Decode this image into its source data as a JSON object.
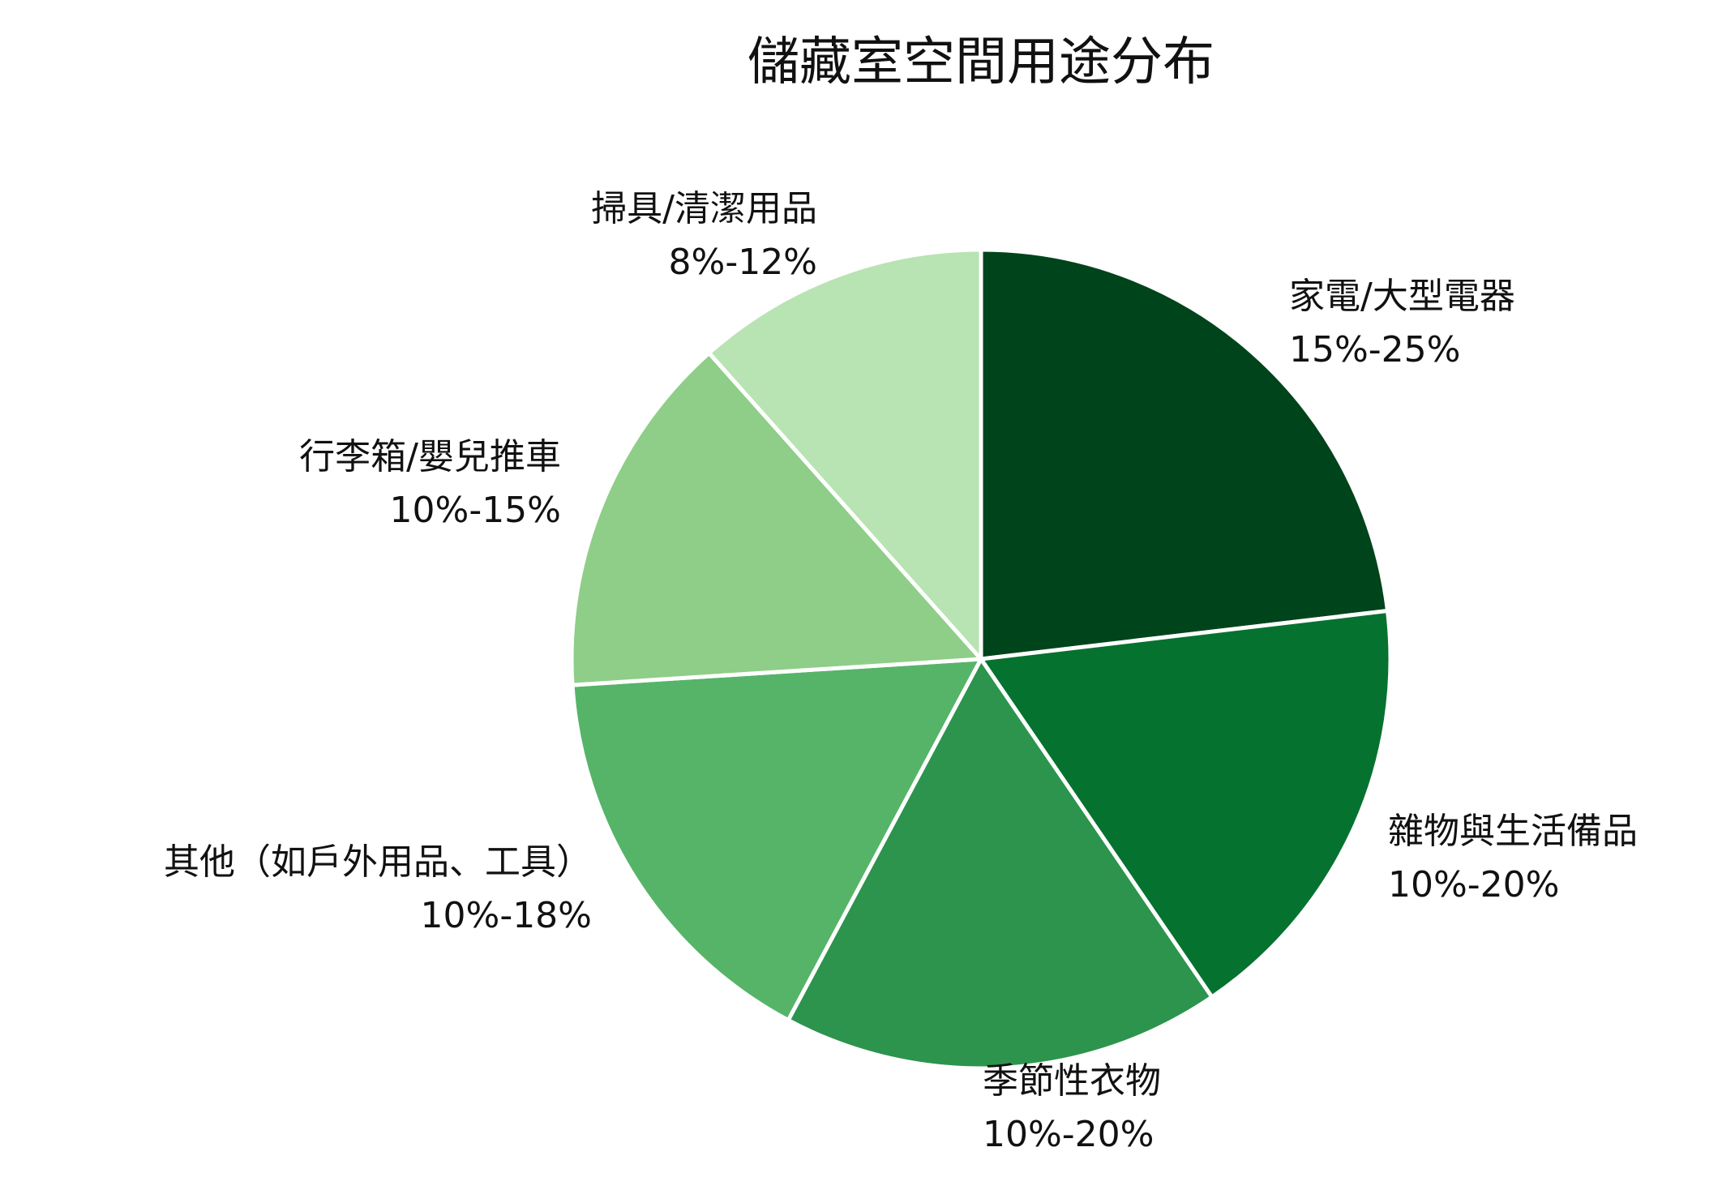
{
  "chart_data": {
    "type": "pie",
    "title": "儲藏室空間用途分布",
    "start_angle_deg": 90,
    "direction": "clockwise",
    "slices": [
      {
        "name": "家電/大型電器",
        "range": "15%-25%",
        "value": 20,
        "color": "#00441b"
      },
      {
        "name": "雜物與生活備品",
        "range": "10%-20%",
        "value": 15,
        "color": "#06722f"
      },
      {
        "name": "季節性衣物",
        "range": "10%-20%",
        "value": 15,
        "color": "#2c944d"
      },
      {
        "name": "其他（如戶外用品、工具）",
        "range": "10%-18%",
        "value": 14,
        "color": "#56b468"
      },
      {
        "name": "行李箱/嬰兒推車",
        "range": "10%-15%",
        "value": 12.5,
        "color": "#8ece88"
      },
      {
        "name": "掃具/清潔用品",
        "range": "8%-12%",
        "value": 10,
        "color": "#b8e3b2"
      }
    ]
  }
}
